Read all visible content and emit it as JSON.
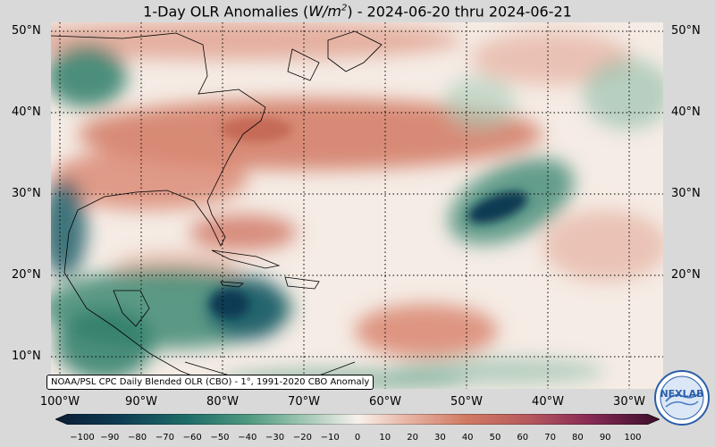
{
  "title": "1-Day OLR Anomalies (W/m²) - 2024-06-20 thru 2024-06-21",
  "title_parts": {
    "pre": "1-Day OLR Anomalies (",
    "unit_main": "W/m",
    "unit_sup": "2",
    "post": ") - 2024-06-20 thru 2024-06-21"
  },
  "lat_labels": [
    "50°N",
    "40°N",
    "30°N",
    "20°N",
    "10°N"
  ],
  "lon_labels": [
    "100°W",
    "90°W",
    "80°W",
    "70°W",
    "60°W",
    "50°W",
    "40°W",
    "30°W"
  ],
  "credit": "NOAA/PSL CPC Daily Blended OLR (CBO) - 1°, 1991-2020 CBO Anomaly",
  "colorbar_labels": [
    "−100",
    "−90",
    "−80",
    "−70",
    "−60",
    "−50",
    "−40",
    "−30",
    "−20",
    "−10",
    "0",
    "10",
    "20",
    "30",
    "40",
    "50",
    "60",
    "70",
    "80",
    "90",
    "100"
  ],
  "logo_text": "NEXLAB",
  "colors": {
    "background": "#d9d9d9",
    "neutral": "#f7f1ec",
    "positive": "#d9806a",
    "negative": "#2f7e6a",
    "deep_negative": "#0d3a52",
    "extreme_positive": "#5c1a3a"
  }
}
